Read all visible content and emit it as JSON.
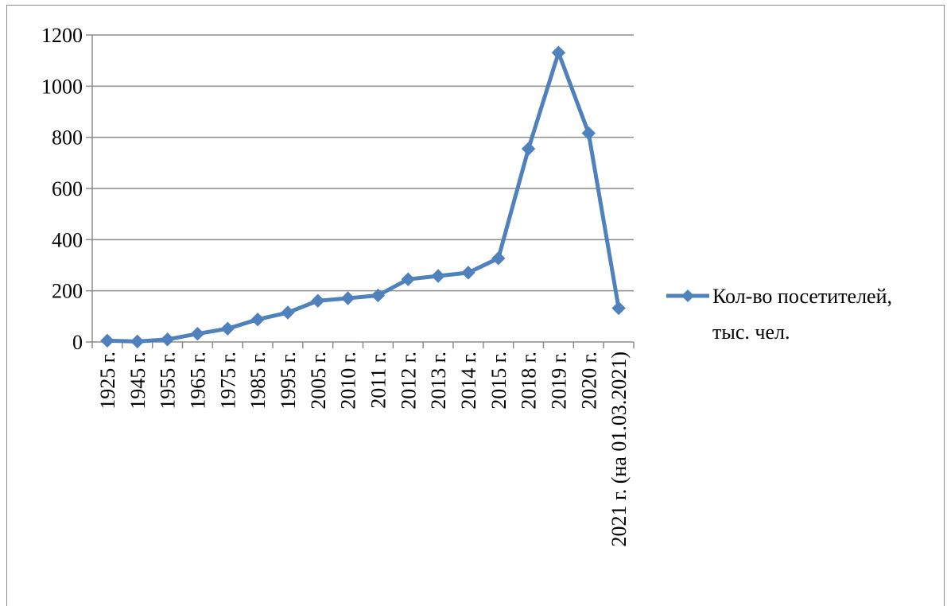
{
  "chart_data": {
    "type": "line",
    "title": "",
    "xlabel": "",
    "ylabel": "",
    "categories": [
      "1925 г.",
      "1945 г.",
      "1955 г.",
      "1965 г.",
      "1975 г.",
      "1985 г.",
      "1995 г.",
      "2005 г.",
      "2010 г.",
      "2011 г.",
      "2012 г.",
      "2013 г.",
      "2014 г.",
      "2015 г.",
      "2018 г.",
      "2019 г.",
      "2020 г.",
      "2021 г. (на 01.03.2021)"
    ],
    "series": [
      {
        "name": "Кол-во посетителей, тыс. чел.",
        "name_lines": [
          "Кол-во посетителей,",
          "тыс. чел."
        ],
        "values": [
          5,
          2,
          10,
          32,
          52,
          88,
          115,
          161,
          171,
          182,
          245,
          258,
          271,
          327,
          755,
          1131,
          816,
          132
        ],
        "color": "#4f81bd"
      }
    ],
    "ylim": [
      0,
      1200
    ],
    "yticks": [
      "0",
      "200",
      "400",
      "600",
      "800",
      "1000",
      "1200"
    ],
    "grid": true,
    "legend": "right",
    "marker": "diamond"
  }
}
